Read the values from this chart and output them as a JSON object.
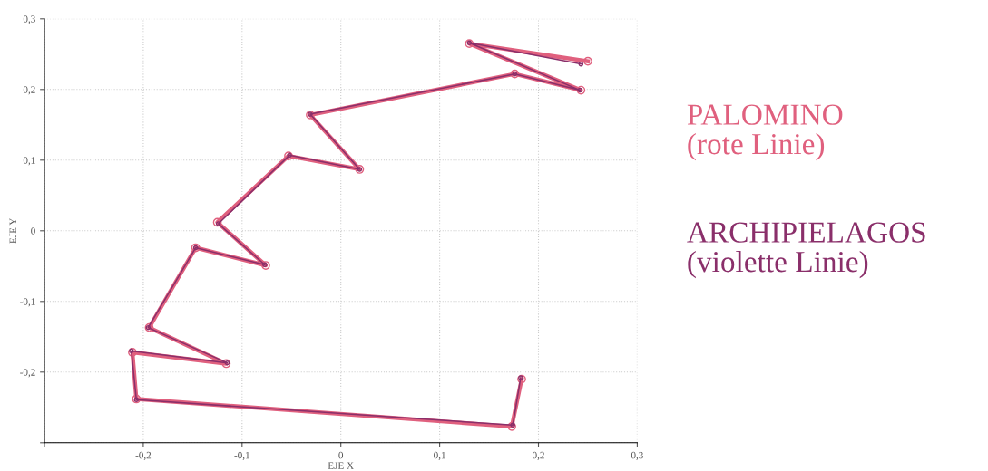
{
  "chart_data": {
    "type": "line",
    "xlabel": "EJE X",
    "ylabel": "EJE Y",
    "xlim": [
      -0.3,
      0.3
    ],
    "ylim": [
      -0.3,
      0.3
    ],
    "xticks": [
      {
        "value": -0.3,
        "label": null
      },
      {
        "value": -0.2,
        "label": "-0,2"
      },
      {
        "value": -0.1,
        "label": "-0,1"
      },
      {
        "value": 0,
        "label": "0"
      },
      {
        "value": 0.1,
        "label": "0,1"
      },
      {
        "value": 0.2,
        "label": "0,2"
      },
      {
        "value": 0.3,
        "label": "0,3"
      }
    ],
    "yticks": [
      {
        "value": -0.3,
        "label": null
      },
      {
        "value": -0.2,
        "label": "-0,2"
      },
      {
        "value": -0.1,
        "label": "-0,1"
      },
      {
        "value": 0,
        "label": "0"
      },
      {
        "value": 0.1,
        "label": "0,1"
      },
      {
        "value": 0.2,
        "label": "0,2"
      },
      {
        "value": 0.3,
        "label": "0,3"
      }
    ],
    "grid": true,
    "marker": "circle",
    "legend": "right",
    "series": [
      {
        "name": "PALOMINO\n(rote Linie)",
        "color": "#e0607e",
        "x": [
          0.183,
          0.173,
          -0.207,
          -0.211,
          -0.116,
          -0.194,
          -0.147,
          -0.076,
          -0.125,
          -0.053,
          0.019,
          -0.031,
          0.176,
          0.243,
          0.13,
          0.25
        ],
        "values": [
          -0.21,
          -0.277,
          -0.238,
          -0.172,
          -0.188,
          -0.137,
          -0.024,
          -0.049,
          0.012,
          0.106,
          0.087,
          0.164,
          0.222,
          0.199,
          0.265,
          0.24
        ]
      },
      {
        "name": "ARCHIPIELAGOS\n(violette Linie)",
        "color": "#8a2f6a",
        "x": [
          0.182,
          0.174,
          -0.207,
          -0.212,
          -0.115,
          -0.195,
          -0.147,
          -0.077,
          -0.124,
          -0.052,
          0.019,
          -0.031,
          0.176,
          0.242,
          0.13,
          0.243
        ],
        "values": [
          -0.208,
          -0.275,
          -0.239,
          -0.17,
          -0.187,
          -0.137,
          -0.024,
          -0.048,
          0.01,
          0.107,
          0.087,
          0.165,
          0.222,
          0.199,
          0.266,
          0.236
        ]
      }
    ]
  }
}
